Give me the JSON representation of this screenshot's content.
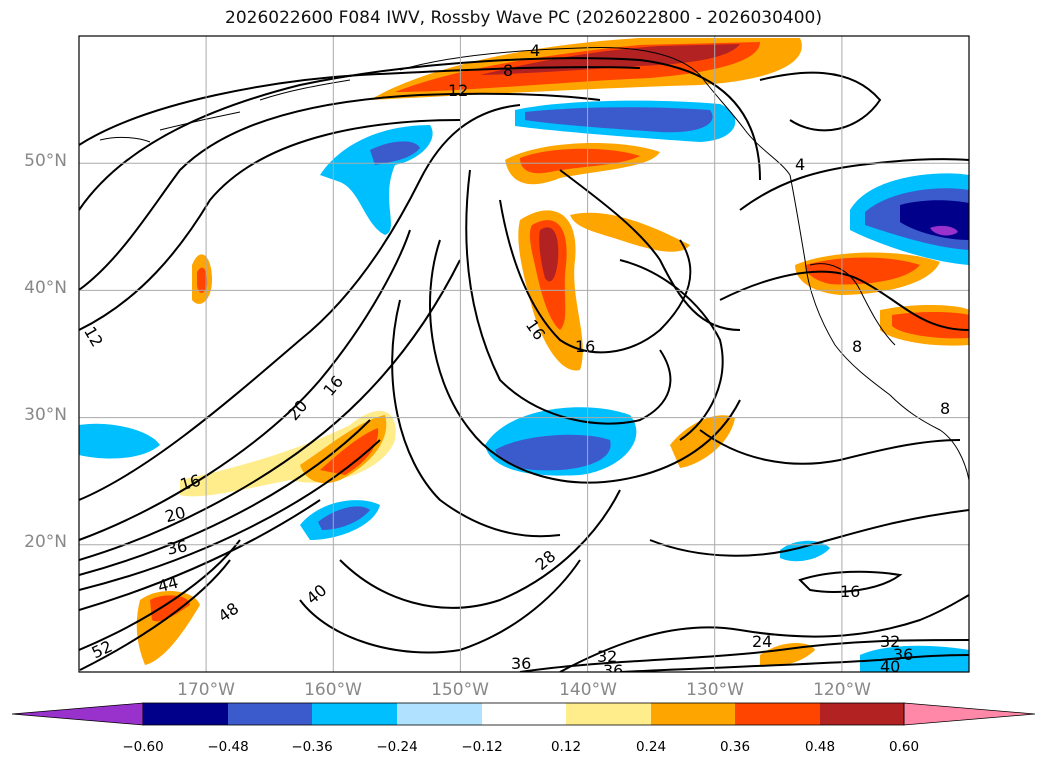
{
  "title": "2026022600 F084 IWV, Rossby Wave PC (2026022800 - 2026030400)",
  "map": {
    "lon_range_deg": [
      -180,
      -110
    ],
    "lat_range_deg": [
      10,
      60
    ],
    "lat_ticks": [
      {
        "value": 20,
        "label": "20°N"
      },
      {
        "value": 30,
        "label": "30°N"
      },
      {
        "value": 40,
        "label": "40°N"
      },
      {
        "value": 50,
        "label": "50°N"
      }
    ],
    "lon_ticks": [
      {
        "value": -170,
        "label": "170°W"
      },
      {
        "value": -160,
        "label": "160°W"
      },
      {
        "value": -150,
        "label": "150°W"
      },
      {
        "value": -140,
        "label": "140°W"
      },
      {
        "value": -130,
        "label": "130°W"
      },
      {
        "value": -120,
        "label": "120°W"
      }
    ],
    "contour_labels": [
      "4",
      "8",
      "12",
      "12",
      "16",
      "16",
      "16",
      "16",
      "20",
      "20",
      "36",
      "44",
      "48",
      "52",
      "40",
      "28",
      "36",
      "32",
      "36",
      "24",
      "16",
      "32",
      "36",
      "40",
      "8",
      "8",
      "4"
    ]
  },
  "colorbar": {
    "colors": [
      "#9932cc",
      "#00008b",
      "#3b5bcc",
      "#00bfff",
      "#b0e2ff",
      "#ffffff",
      "#ffec8b",
      "#ffa500",
      "#ff4500",
      "#b22222",
      "#ff88a8"
    ],
    "tick_labels": [
      "−0.60",
      "−0.48",
      "−0.36",
      "−0.24",
      "−0.12",
      "0.12",
      "0.24",
      "0.36",
      "0.48",
      "0.60"
    ]
  }
}
